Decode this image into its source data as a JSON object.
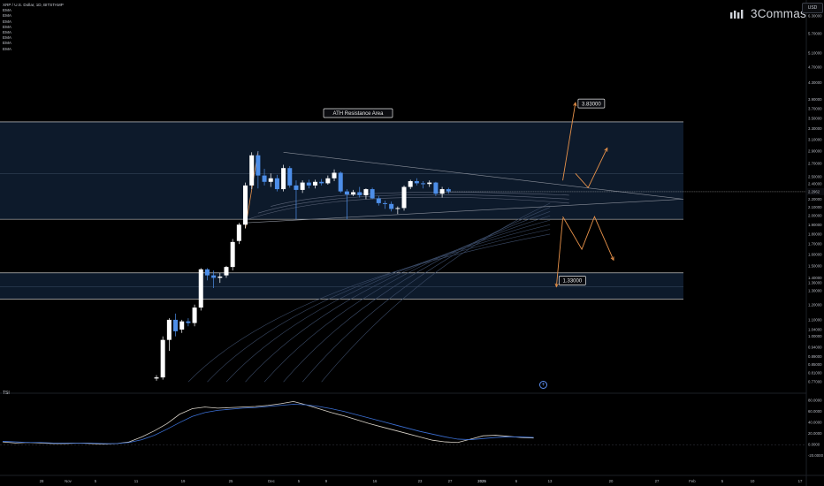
{
  "header": {
    "title": "XRP / U.S. Dollar, 1D, BITSTAMP",
    "indicators": [
      "EMA",
      "EMA",
      "EMA",
      "EMA",
      "EMA",
      "EMA",
      "EMA",
      "EMA"
    ]
  },
  "brand": {
    "name": "3Commas"
  },
  "currency_button": "USD",
  "oscillator_label": "TSI",
  "colors": {
    "background": "#000000",
    "zone_fill": "#0d1a2b",
    "bull_candle": "#ffffff",
    "bear_candle": "#4d8ee8",
    "projection": "#e8924a",
    "ema": "#3a4a66",
    "tsi_line": "#d8d2c8",
    "signal_line": "#3b6fd4"
  },
  "chart_data": [
    {
      "type": "candlestick",
      "title": "XRP / U.S. Dollar, 1D, BITSTAMP",
      "y_scale": "log",
      "ylim": [
        0.74,
        6.7
      ],
      "y_ticks": [
        "6.30000",
        "5.70000",
        "5.10000",
        "4.70000",
        "4.30000",
        "3.90000",
        "3.70000",
        "3.50000",
        "3.30000",
        "3.10000",
        "2.90000",
        "2.70000",
        "2.50000",
        "2.40000",
        "2.30000",
        "2.20000",
        "2.10000",
        "2.00000",
        "1.90000",
        "1.80000",
        "1.70000",
        "1.60000",
        "1.50000",
        "1.40000",
        "1.36000",
        "1.30000",
        "1.20000",
        "1.10000",
        "1.04000",
        "1.00000",
        "0.94000",
        "0.89000",
        "0.85000",
        "0.81000",
        "0.77000"
      ],
      "x_ticks": [
        "28",
        "Nov",
        "5",
        "11",
        "19",
        "25",
        "Dec",
        "5",
        "9",
        "16",
        "23",
        "27",
        "2025",
        "6",
        "13",
        "20",
        "27",
        "Feb",
        "5",
        "10",
        "17"
      ],
      "current_price": "2.2962",
      "candles": [
        {
          "o": 0.785,
          "h": 0.8,
          "l": 0.775,
          "c": 0.79
        },
        {
          "o": 0.79,
          "h": 1.0,
          "l": 0.78,
          "c": 0.98
        },
        {
          "o": 0.98,
          "h": 1.11,
          "l": 0.92,
          "c": 1.1
        },
        {
          "o": 1.1,
          "h": 1.14,
          "l": 1.0,
          "c": 1.03
        },
        {
          "o": 1.04,
          "h": 1.1,
          "l": 1.02,
          "c": 1.09
        },
        {
          "o": 1.09,
          "h": 1.11,
          "l": 1.06,
          "c": 1.08
        },
        {
          "o": 1.08,
          "h": 1.2,
          "l": 1.06,
          "c": 1.18
        },
        {
          "o": 1.18,
          "h": 1.48,
          "l": 1.16,
          "c": 1.47
        },
        {
          "o": 1.47,
          "h": 1.48,
          "l": 1.38,
          "c": 1.42
        },
        {
          "o": 1.42,
          "h": 1.46,
          "l": 1.32,
          "c": 1.4
        },
        {
          "o": 1.4,
          "h": 1.44,
          "l": 1.36,
          "c": 1.41
        },
        {
          "o": 1.42,
          "h": 1.5,
          "l": 1.4,
          "c": 1.49
        },
        {
          "o": 1.49,
          "h": 1.75,
          "l": 1.46,
          "c": 1.72
        },
        {
          "o": 1.73,
          "h": 1.92,
          "l": 1.7,
          "c": 1.9
        },
        {
          "o": 1.9,
          "h": 2.42,
          "l": 1.86,
          "c": 2.38
        },
        {
          "o": 2.38,
          "h": 2.88,
          "l": 2.33,
          "c": 2.83
        },
        {
          "o": 2.83,
          "h": 2.9,
          "l": 2.34,
          "c": 2.52
        },
        {
          "o": 2.52,
          "h": 2.62,
          "l": 2.38,
          "c": 2.43
        },
        {
          "o": 2.43,
          "h": 2.55,
          "l": 2.36,
          "c": 2.48
        },
        {
          "o": 2.48,
          "h": 2.53,
          "l": 2.3,
          "c": 2.33
        },
        {
          "o": 2.33,
          "h": 2.68,
          "l": 2.3,
          "c": 2.63
        },
        {
          "o": 2.63,
          "h": 2.66,
          "l": 2.35,
          "c": 2.38
        },
        {
          "o": 2.38,
          "h": 2.45,
          "l": 1.96,
          "c": 2.32
        },
        {
          "o": 2.32,
          "h": 2.45,
          "l": 2.28,
          "c": 2.42
        },
        {
          "o": 2.42,
          "h": 2.46,
          "l": 2.34,
          "c": 2.38
        },
        {
          "o": 2.38,
          "h": 2.46,
          "l": 2.34,
          "c": 2.43
        },
        {
          "o": 2.43,
          "h": 2.47,
          "l": 2.38,
          "c": 2.41
        },
        {
          "o": 2.41,
          "h": 2.52,
          "l": 2.39,
          "c": 2.48
        },
        {
          "o": 2.48,
          "h": 2.61,
          "l": 2.44,
          "c": 2.56
        },
        {
          "o": 2.56,
          "h": 2.58,
          "l": 2.28,
          "c": 2.3
        },
        {
          "o": 2.3,
          "h": 2.33,
          "l": 1.96,
          "c": 2.26
        },
        {
          "o": 2.26,
          "h": 2.32,
          "l": 2.24,
          "c": 2.29
        },
        {
          "o": 2.29,
          "h": 2.36,
          "l": 2.22,
          "c": 2.25
        },
        {
          "o": 2.25,
          "h": 2.34,
          "l": 2.2,
          "c": 2.33
        },
        {
          "o": 2.33,
          "h": 2.35,
          "l": 2.2,
          "c": 2.21
        },
        {
          "o": 2.21,
          "h": 2.24,
          "l": 2.12,
          "c": 2.15
        },
        {
          "o": 2.15,
          "h": 2.18,
          "l": 2.08,
          "c": 2.14
        },
        {
          "o": 2.14,
          "h": 2.17,
          "l": 2.05,
          "c": 2.08
        },
        {
          "o": 2.08,
          "h": 2.11,
          "l": 2.02,
          "c": 2.09
        },
        {
          "o": 2.09,
          "h": 2.38,
          "l": 2.06,
          "c": 2.36
        },
        {
          "o": 2.36,
          "h": 2.46,
          "l": 2.33,
          "c": 2.44
        },
        {
          "o": 2.44,
          "h": 2.48,
          "l": 2.38,
          "c": 2.41
        },
        {
          "o": 2.41,
          "h": 2.44,
          "l": 2.34,
          "c": 2.4
        },
        {
          "o": 2.4,
          "h": 2.45,
          "l": 2.36,
          "c": 2.42
        },
        {
          "o": 2.42,
          "h": 2.43,
          "l": 2.24,
          "c": 2.27
        },
        {
          "o": 2.27,
          "h": 2.36,
          "l": 2.22,
          "c": 2.33
        },
        {
          "o": 2.33,
          "h": 2.35,
          "l": 2.27,
          "c": 2.3
        }
      ],
      "zones": [
        {
          "label": "ATH Resistance Area",
          "low": 1.96,
          "high": 3.43
        },
        {
          "low": 1.24,
          "high": 1.44
        }
      ],
      "annotations": [
        {
          "text": "ATH Resistance Area"
        },
        {
          "text": "3.83000",
          "value": 3.83
        },
        {
          "text": "1.33000",
          "value": 1.33
        }
      ],
      "projections": [
        {
          "name": "bullish",
          "path": [
            [
              64,
              2.45
            ],
            [
              66,
              3.83
            ]
          ]
        },
        {
          "name": "bullish-alt",
          "path": [
            [
              66,
              2.55
            ],
            [
              68,
              2.35
            ],
            [
              71,
              2.95
            ]
          ]
        },
        {
          "name": "bearish",
          "path": [
            [
              64,
              1.99
            ],
            [
              67,
              1.65
            ],
            [
              69,
              1.99
            ],
            [
              72,
              1.55
            ]
          ]
        },
        {
          "name": "bearish-target",
          "path": [
            [
              64,
              1.97
            ],
            [
              63,
              1.33
            ]
          ]
        }
      ]
    },
    {
      "type": "line",
      "title": "TSI",
      "ylim": [
        -30,
        85
      ],
      "y_ticks": [
        "80.0000",
        "60.0000",
        "40.0000",
        "20.0000",
        "0.0000",
        "-20.0000"
      ],
      "series": [
        {
          "values": [
            5,
            3,
            4,
            3,
            2,
            2,
            3,
            2,
            1,
            2,
            5,
            14,
            25,
            38,
            55,
            65,
            68,
            66,
            67,
            68,
            69,
            71,
            74,
            78,
            72,
            65,
            58,
            52,
            45,
            38,
            32,
            26,
            20,
            14,
            8,
            5,
            4,
            10,
            16,
            17,
            15,
            13,
            12
          ]
        },
        {
          "values": [
            6,
            5,
            4,
            4,
            3,
            3,
            3,
            3,
            2,
            2,
            4,
            9,
            17,
            28,
            40,
            51,
            58,
            62,
            64,
            66,
            67,
            69,
            71,
            73,
            72,
            69,
            65,
            60,
            54,
            48,
            42,
            36,
            30,
            24,
            19,
            14,
            10,
            9,
            11,
            13,
            14,
            14,
            13
          ]
        }
      ]
    }
  ]
}
